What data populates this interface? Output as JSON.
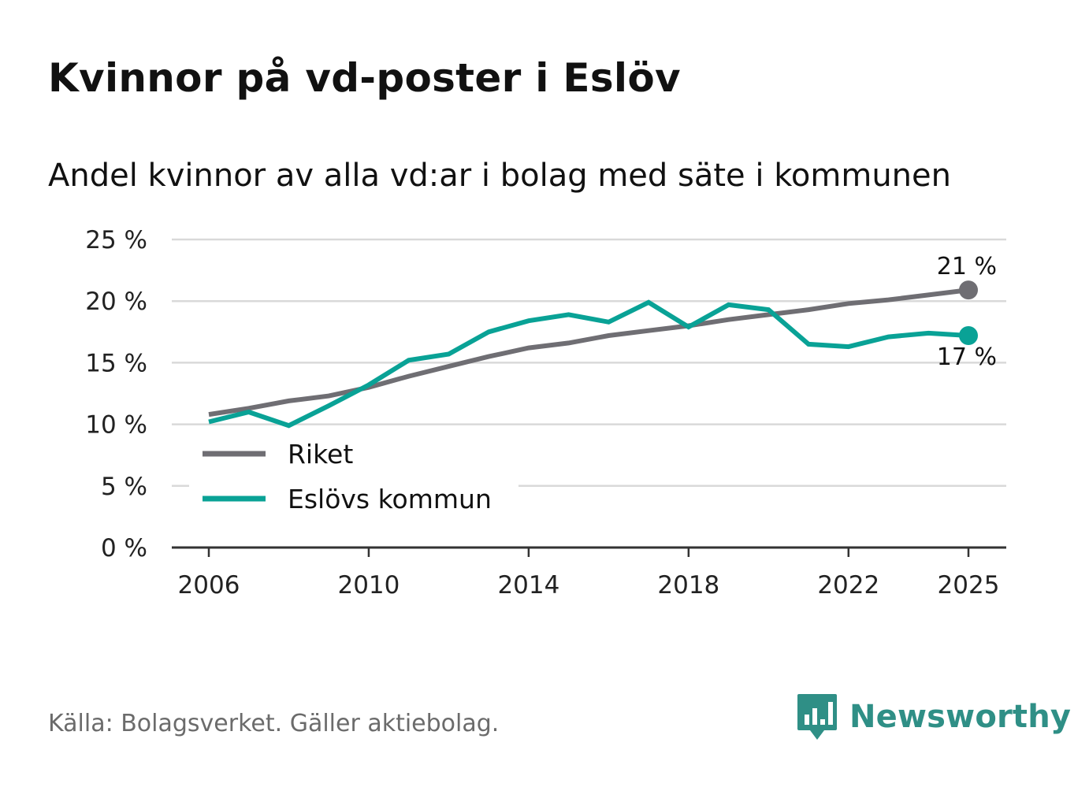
{
  "title": "Kvinnor på vd-poster i Eslöv",
  "subtitle": "Andel kvinnor av alla vd:ar i bolag med säte i kommunen",
  "source": "Källa: Bolagsverket. Gäller aktiebolag.",
  "brand": "Newsworthy",
  "colors": {
    "riket": "#6f6e73",
    "eslov": "#09a296",
    "grid": "#d9d9d9",
    "axis": "#333333",
    "brand": "#2f8f86"
  },
  "chart_data": {
    "type": "line",
    "title": "Kvinnor på vd-poster i Eslöv",
    "subtitle": "Andel kvinnor av alla vd:ar i bolag med säte i kommunen",
    "xlabel": "",
    "ylabel": "",
    "x": [
      2006,
      2007,
      2008,
      2009,
      2010,
      2011,
      2012,
      2013,
      2014,
      2015,
      2016,
      2017,
      2018,
      2019,
      2020,
      2021,
      2022,
      2023,
      2024,
      2025
    ],
    "xticks": [
      2006,
      2010,
      2014,
      2018,
      2022,
      2025
    ],
    "xtick_labels": [
      "2006",
      "2010",
      "2014",
      "2018",
      "2022",
      "2025"
    ],
    "xlim": [
      2006,
      2025
    ],
    "ylim": [
      0,
      25
    ],
    "yticks": [
      0,
      5,
      10,
      15,
      20,
      25
    ],
    "ytick_labels": [
      "0 %",
      "5 %",
      "10 %",
      "15 %",
      "20 %",
      "25 %"
    ],
    "grid": true,
    "legend_position": "bottom-left",
    "series": [
      {
        "name": "Riket",
        "color": "#6f6e73",
        "values": [
          10.8,
          11.3,
          11.9,
          12.3,
          13.0,
          13.9,
          14.7,
          15.5,
          16.2,
          16.6,
          17.2,
          17.6,
          18.0,
          18.5,
          18.9,
          19.3,
          19.8,
          20.1,
          20.5,
          20.9
        ],
        "end_label": "21 %"
      },
      {
        "name": "Eslövs kommun",
        "color": "#09a296",
        "values": [
          10.2,
          11.0,
          9.9,
          11.5,
          13.2,
          15.2,
          15.7,
          17.5,
          18.4,
          18.9,
          18.3,
          19.9,
          17.9,
          19.7,
          19.3,
          16.5,
          16.3,
          17.1,
          17.4,
          17.2
        ],
        "end_label": "17 %"
      }
    ]
  }
}
